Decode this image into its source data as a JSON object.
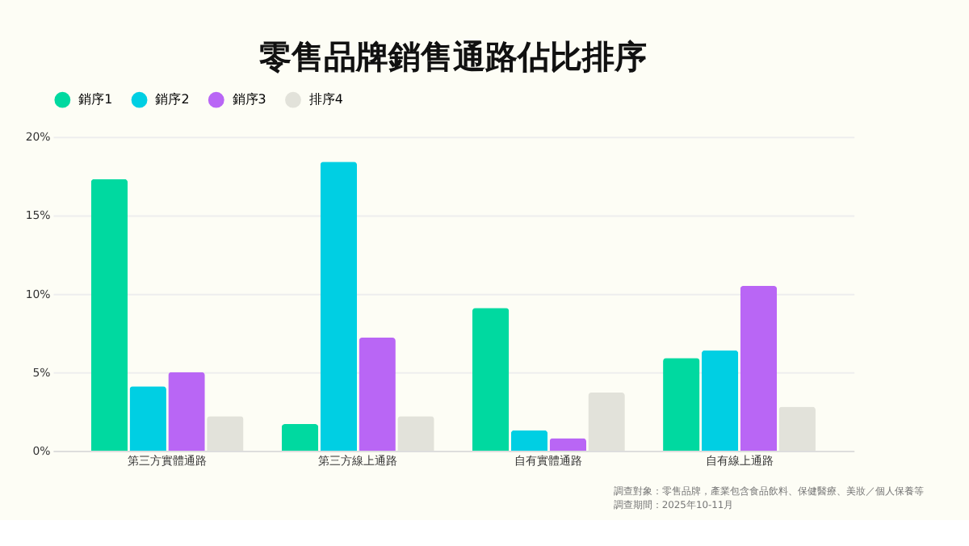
{
  "chart_data": {
    "type": "bar",
    "title": "零售品牌銷售通路佔比排序",
    "categories": [
      "第三方實體通路",
      "第三方線上通路",
      "自有實體通路",
      "自有線上通路"
    ],
    "series": [
      {
        "name": "銷序1",
        "color": "#00d9a0",
        "values": [
          17.3,
          1.7,
          9.1,
          5.9
        ]
      },
      {
        "name": "銷序2",
        "color": "#00cfe3",
        "values": [
          4.1,
          18.4,
          1.3,
          6.4
        ]
      },
      {
        "name": "銷序3",
        "color": "#b966f5",
        "values": [
          5.0,
          7.2,
          0.8,
          10.5
        ]
      },
      {
        "name": "排序4",
        "color": "#e2e2da",
        "values": [
          2.2,
          2.2,
          3.7,
          2.8
        ]
      }
    ],
    "ylim": [
      0,
      20
    ],
    "yticks": [
      {
        "value": 0,
        "label": "0%"
      },
      {
        "value": 5,
        "label": "5%"
      },
      {
        "value": 10,
        "label": "10%"
      },
      {
        "value": 15,
        "label": "15%"
      },
      {
        "value": 20,
        "label": "20%"
      }
    ],
    "grid": "y",
    "legend": "top",
    "annotations": [
      "調查對象：零售品牌，產業包含食品飲料、保健醫療、美妝／個人保養等",
      "調查期間：2025年10-11月"
    ]
  }
}
